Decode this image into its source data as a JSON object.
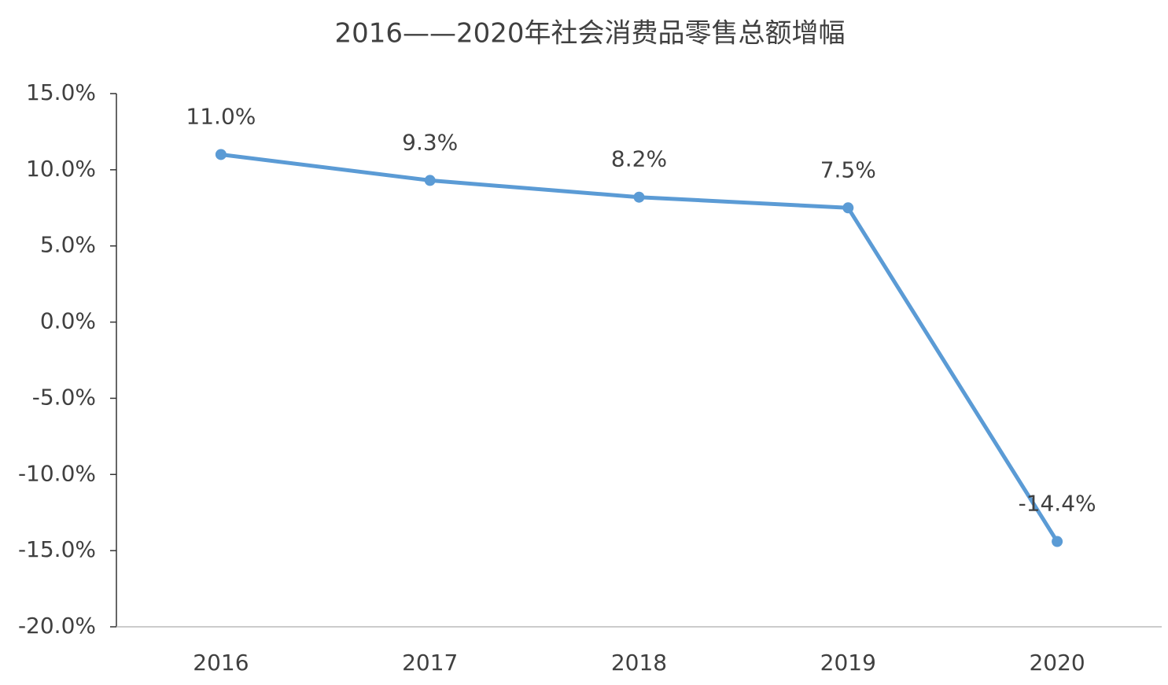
{
  "chart_data": {
    "type": "line",
    "title": "2016——2020年社会消费品零售总额增幅",
    "categories": [
      "2016",
      "2017",
      "2018",
      "2019",
      "2020"
    ],
    "values": [
      11.0,
      9.3,
      8.2,
      7.5,
      -14.4
    ],
    "value_labels": [
      "11.0%",
      "9.3%",
      "8.2%",
      "7.5%",
      "-14.4%"
    ],
    "color": "#5b9bd5",
    "ylim": [
      -20,
      15
    ],
    "yticks": [
      {
        "value": -20,
        "label": "-20.0%"
      },
      {
        "value": -15,
        "label": "-15.0%"
      },
      {
        "value": -10,
        "label": "-10.0%"
      },
      {
        "value": -5,
        "label": "-5.0%"
      },
      {
        "value": 0,
        "label": "0.0%"
      },
      {
        "value": 5,
        "label": "5.0%"
      },
      {
        "value": 10,
        "label": "10.0%"
      },
      {
        "value": 15,
        "label": "15.0%"
      }
    ],
    "grid": false
  }
}
